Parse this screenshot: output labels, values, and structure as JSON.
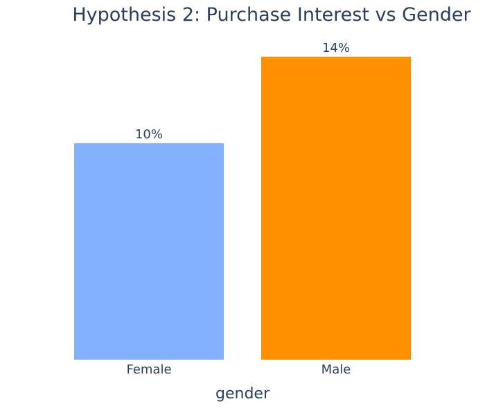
{
  "chart_data": {
    "type": "bar",
    "title": "Hypothesis 2: Purchase Interest vs Gender",
    "xlabel": "gender",
    "ylabel": "",
    "categories": [
      "Female",
      "Male"
    ],
    "values": [
      10,
      14
    ],
    "data_labels": [
      "10%",
      "14%"
    ],
    "colors": [
      "#83b0ff",
      "#ff9100"
    ],
    "ylim": [
      0,
      14
    ],
    "grid": false,
    "legend": "none"
  }
}
